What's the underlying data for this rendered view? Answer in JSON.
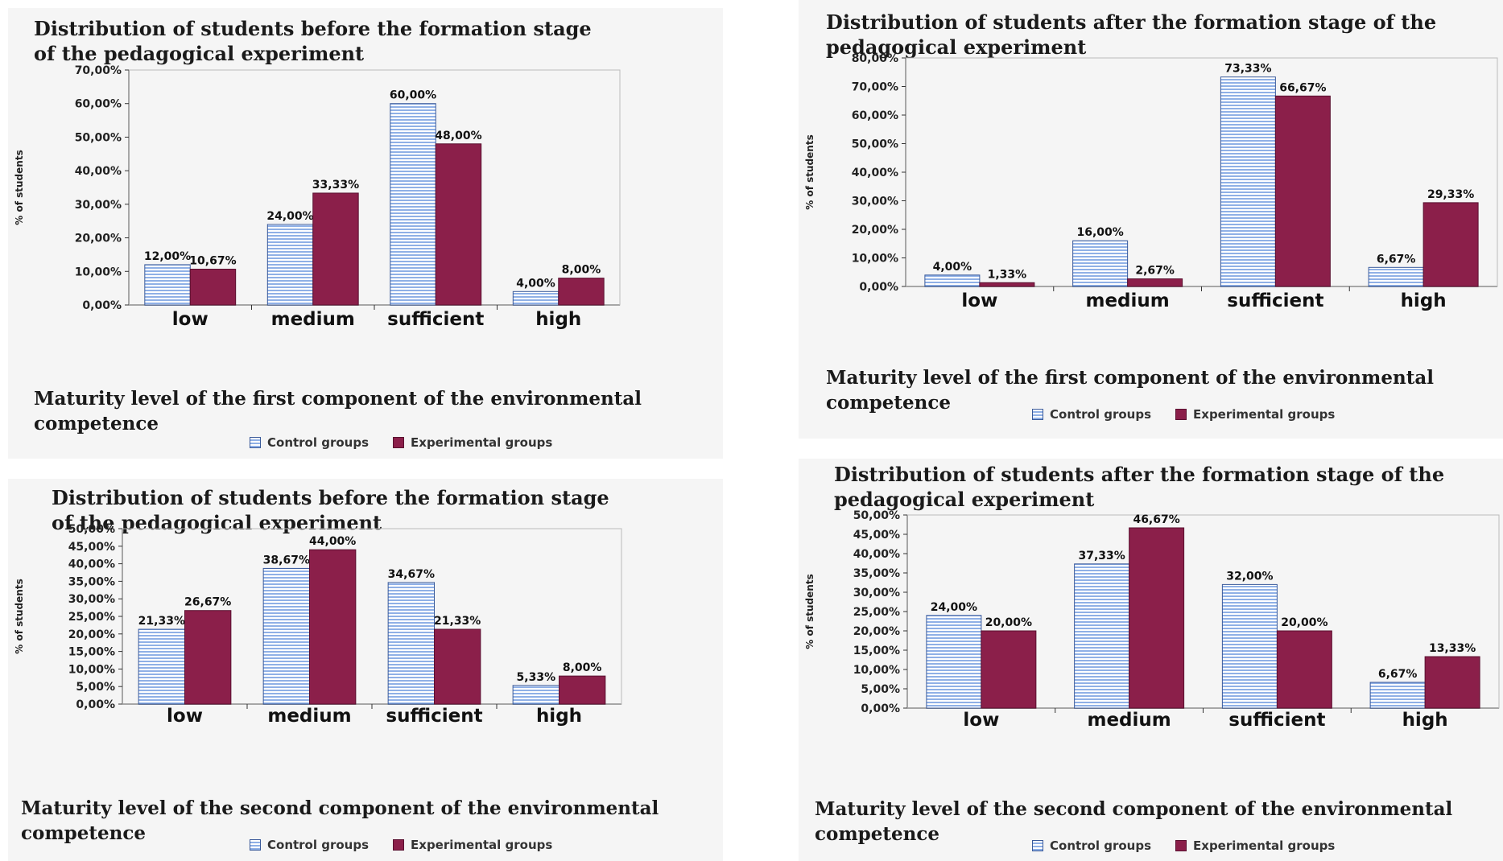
{
  "charts": [
    {
      "title": "Distribution of students before the formation stage of the pedagogical experiment",
      "x_title": "Maturity level of the first component of the environmental competence",
      "legend": {
        "control": "Control groups",
        "experimental": "Experimental groups"
      },
      "chart_data": {
        "type": "bar",
        "categories": [
          "low",
          "medium",
          "sufficient",
          "high"
        ],
        "series": [
          {
            "name": "Control groups",
            "values": [
              12.0,
              24.0,
              60.0,
              4.0
            ],
            "labels": [
              "12,00%",
              "24,00%",
              "60,00%",
              "4,00%"
            ]
          },
          {
            "name": "Experimental groups",
            "values": [
              10.67,
              33.33,
              48.0,
              8.0
            ],
            "labels": [
              "10,67%",
              "33,33%",
              "48,00%",
              "8,00%"
            ]
          }
        ],
        "ylabel": "% of students",
        "ylim": [
          0,
          70
        ],
        "yticks": [
          "0,00%",
          "10,00%",
          "20,00%",
          "30,00%",
          "40,00%",
          "50,00%",
          "60,00%",
          "70,00%"
        ],
        "grid": false,
        "legend_position": "bottom"
      }
    },
    {
      "title": "Distribution of students after the formation stage of the pedagogical experiment",
      "x_title": "Maturity level of the first component of the environmental competence",
      "legend": {
        "control": "Control groups",
        "experimental": "Experimental groups"
      },
      "chart_data": {
        "type": "bar",
        "categories": [
          "low",
          "medium",
          "sufficient",
          "high"
        ],
        "series": [
          {
            "name": "Control groups",
            "values": [
              4.0,
              16.0,
              73.33,
              6.67
            ],
            "labels": [
              "4,00%",
              "16,00%",
              "73,33%",
              "6,67%"
            ]
          },
          {
            "name": "Experimental groups",
            "values": [
              1.33,
              2.67,
              66.67,
              29.33
            ],
            "labels": [
              "1,33%",
              "2,67%",
              "66,67%",
              "29,33%"
            ]
          }
        ],
        "ylabel": "% of students",
        "ylim": [
          0,
          80
        ],
        "yticks": [
          "0,00%",
          "10,00%",
          "20,00%",
          "30,00%",
          "40,00%",
          "50,00%",
          "60,00%",
          "70,00%",
          "80,00%"
        ],
        "grid": false,
        "legend_position": "bottom"
      }
    },
    {
      "title": "Distribution of students before the formation stage of the pedagogical experiment",
      "x_title": "Maturity level of the second component of the environmental competence",
      "legend": {
        "control": "Control groups",
        "experimental": "Experimental groups"
      },
      "chart_data": {
        "type": "bar",
        "categories": [
          "low",
          "medium",
          "sufficient",
          "high"
        ],
        "series": [
          {
            "name": "Control groups",
            "values": [
              21.33,
              38.67,
              34.67,
              5.33
            ],
            "labels": [
              "21,33%",
              "38,67%",
              "34,67%",
              "5,33%"
            ]
          },
          {
            "name": "Experimental groups",
            "values": [
              26.67,
              44.0,
              21.33,
              8.0
            ],
            "labels": [
              "26,67%",
              "44,00%",
              "21,33%",
              "8,00%"
            ]
          }
        ],
        "ylabel": "% of students",
        "ylim": [
          0,
          50
        ],
        "yticks": [
          "0,00%",
          "5,00%",
          "10,00%",
          "15,00%",
          "20,00%",
          "25,00%",
          "30,00%",
          "35,00%",
          "40,00%",
          "45,00%",
          "50,00%"
        ],
        "grid": false,
        "legend_position": "bottom"
      }
    },
    {
      "title": "Distribution of students after the formation stage of the pedagogical experiment",
      "x_title": "Maturity level of the second component of the environmental competence",
      "legend": {
        "control": "Control groups",
        "experimental": "Experimental groups"
      },
      "chart_data": {
        "type": "bar",
        "categories": [
          "low",
          "medium",
          "sufficient",
          "high"
        ],
        "series": [
          {
            "name": "Control groups",
            "values": [
              24.0,
              37.33,
              32.0,
              6.67
            ],
            "labels": [
              "24,00%",
              "37,33%",
              "32,00%",
              "6,67%"
            ]
          },
          {
            "name": "Experimental groups",
            "values": [
              20.0,
              46.67,
              20.0,
              13.33
            ],
            "labels": [
              "20,00%",
              "46,67%",
              "20,00%",
              "13,33%"
            ]
          }
        ],
        "ylabel": "% of students",
        "ylim": [
          0,
          50
        ],
        "yticks": [
          "0,00%",
          "5,00%",
          "10,00%",
          "15,00%",
          "20,00%",
          "25,00%",
          "30,00%",
          "35,00%",
          "40,00%",
          "45,00%",
          "50,00%"
        ],
        "grid": false,
        "legend_position": "bottom"
      }
    }
  ],
  "colors": {
    "control_fill": "#d9e3f5",
    "control_stripe": "#8fb0e6",
    "control_edge": "#3a5a9a",
    "experimental_fill": "#8b1f4a",
    "experimental_edge": "#5a1030",
    "panel_bg": "#f5f5f5",
    "axis": "#333333"
  }
}
